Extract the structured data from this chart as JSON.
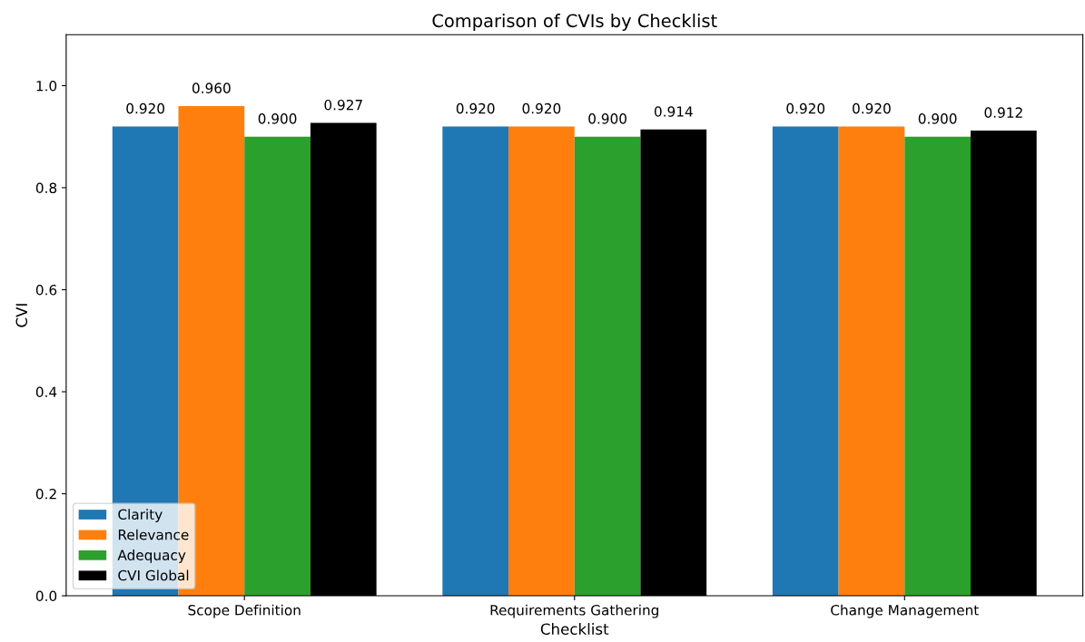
{
  "chart_data": {
    "type": "bar",
    "title": "Comparison of CVIs by Checklist",
    "xlabel": "Checklist",
    "ylabel": "CVI",
    "categories": [
      "Scope Definition",
      "Requirements Gathering",
      "Change Management"
    ],
    "series": [
      {
        "name": "Clarity",
        "color": "#1f77b4",
        "values": [
          0.92,
          0.92,
          0.92
        ],
        "value_labels": [
          "0.920",
          "0.920",
          "0.920"
        ]
      },
      {
        "name": "Relevance",
        "color": "#ff7f0e",
        "values": [
          0.96,
          0.92,
          0.92
        ],
        "value_labels": [
          "0.960",
          "0.920",
          "0.920"
        ]
      },
      {
        "name": "Adequacy",
        "color": "#2ca02c",
        "values": [
          0.9,
          0.9,
          0.9
        ],
        "value_labels": [
          "0.900",
          "0.900",
          "0.900"
        ]
      },
      {
        "name": "CVI Global",
        "color": "#000000",
        "values": [
          0.927,
          0.914,
          0.912
        ],
        "value_labels": [
          "0.927",
          "0.914",
          "0.912"
        ]
      }
    ],
    "ylim": [
      0,
      1.1
    ],
    "yticks": [
      {
        "value": 0,
        "label": "0.0"
      },
      0.2,
      0.4,
      0.6,
      0.8,
      {
        "value": 1,
        "label": "1.0"
      }
    ],
    "grid": false,
    "legend": "bottom left"
  }
}
